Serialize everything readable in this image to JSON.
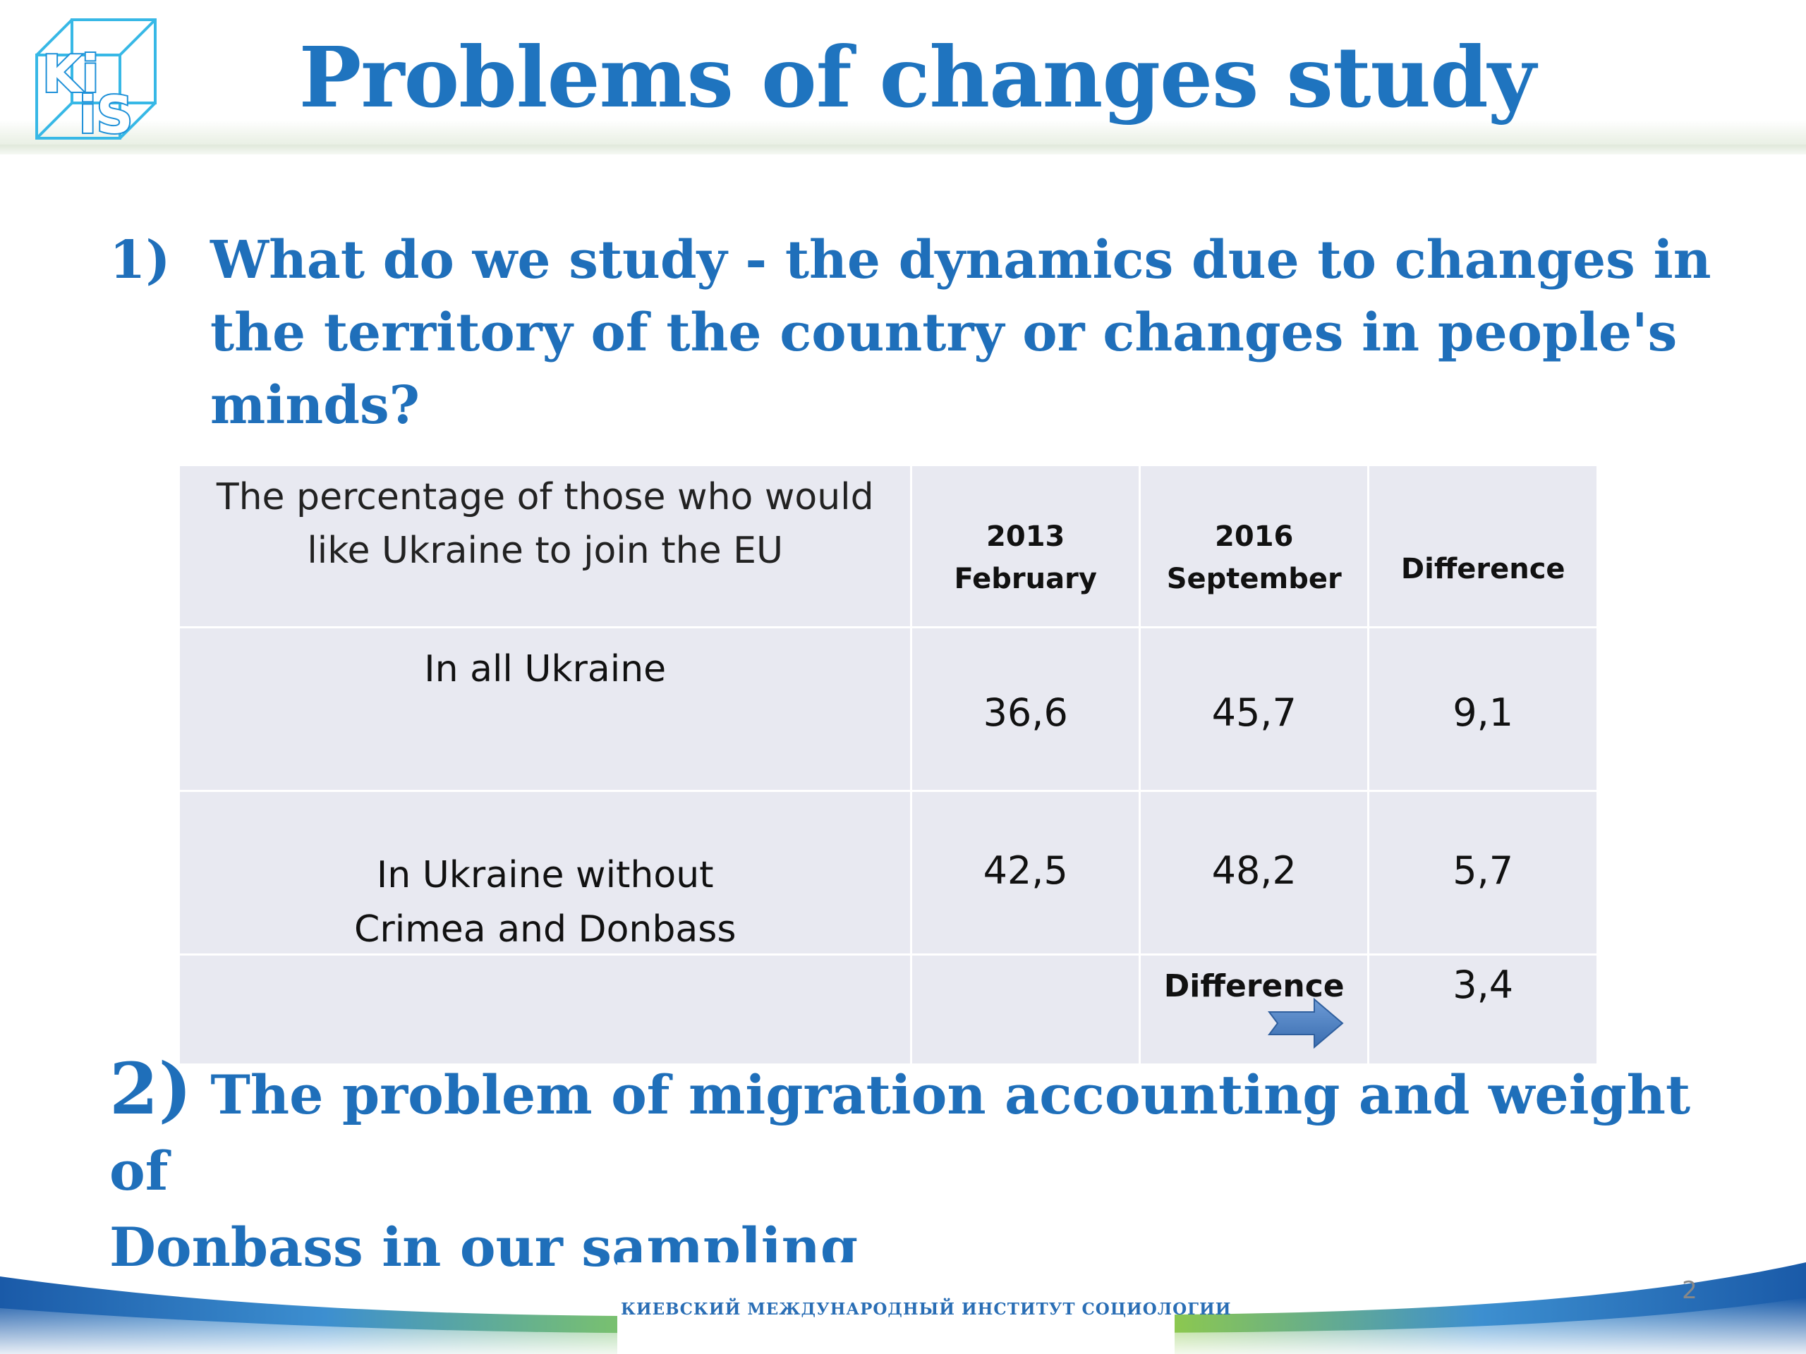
{
  "header": {
    "logo_text": "KIIS",
    "title": "Problems of changes study"
  },
  "point1": {
    "number": "1)",
    "line1": "What do we study - the dynamics due to changes in",
    "line2": "the territory of the country or changes in people's",
    "line3": "minds?"
  },
  "table": {
    "header": {
      "label_line1": "The percentage of those who would",
      "label_line2": "like Ukraine to join the EU",
      "col2_line1": "2013",
      "col2_line2": "February",
      "col3_line1": "2016",
      "col3_line2": "September",
      "col4": "Difference"
    },
    "rows": [
      {
        "label_line1": "In all Ukraine",
        "label_line2": "",
        "v2013": "36,6",
        "v2016": "45,7",
        "diff": "9,1"
      },
      {
        "label_line1": "In Ukraine without",
        "label_line2": "Crimea and Donbass",
        "v2013": "42,5",
        "v2016": "48,2",
        "diff": "5,7"
      }
    ],
    "difference_row": {
      "label": "Difference",
      "value": "3,4"
    }
  },
  "point2": {
    "number": "2)",
    "text_line1": " The problem of migration accounting and weight of",
    "text_line2": "Donbass in our sampling"
  },
  "footer": {
    "institute": "КИЕВСКИЙ МЕЖДУНАРОДНЫЙ ИНСТИТУТ СОЦИОЛОГИИ",
    "page_number": "2"
  },
  "colors": {
    "title_blue": "#1f74bf",
    "text_blue": "#1f6fba",
    "table_bg": "#e8e9f1",
    "arrow_blue": "#4a7ec2"
  }
}
